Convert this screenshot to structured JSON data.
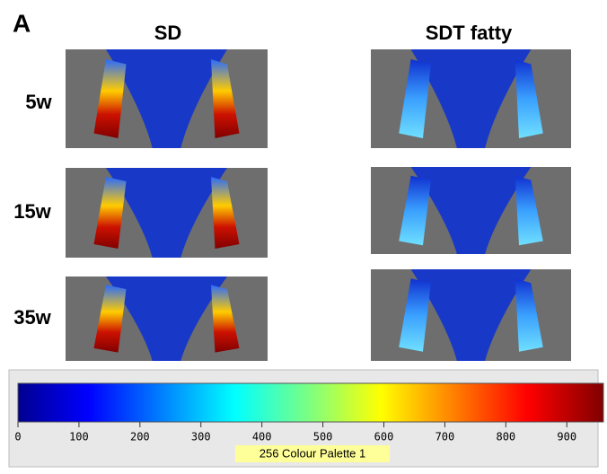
{
  "panel_label": "A",
  "columns": [
    "SD",
    "SDT fatty"
  ],
  "rows": [
    "5w",
    "15w",
    "35w"
  ],
  "colorbar": {
    "range": [
      0,
      960
    ],
    "ticks": [
      0,
      100,
      200,
      300,
      400,
      500,
      600,
      700,
      800,
      900
    ],
    "caption": "256 Colour Palette 1"
  }
}
